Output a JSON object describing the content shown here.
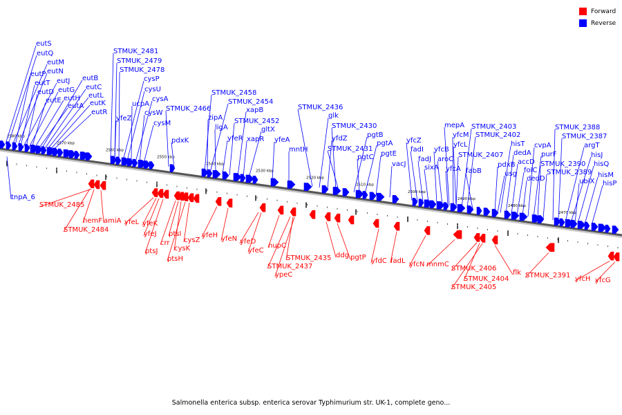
{
  "legend": {
    "forward_label": "Forward",
    "reverse_label": "Reverse",
    "forward_color": "#ff0000",
    "reverse_color": "#0000ff"
  },
  "caption": "Salmonella enterica subsp. enterica serovar Typhimurium str. UK-1, complete geno...",
  "ruler_labels": [
    "2580 kbp",
    "2570 kbp",
    "2560 kbp",
    "2550 kbp",
    "2540 kbp",
    "2530 kbp",
    "2520 kbp",
    "2510 kbp",
    "2500 kbp",
    "2490 kbp",
    "2480 kbp",
    "2470 kbp"
  ],
  "reverse_labels": [
    "eutS",
    "eutQ",
    "eutM",
    "eutP",
    "eutN",
    "eutT",
    "eutJ",
    "eutD",
    "eutG",
    "eutE",
    "eutH",
    "eutA",
    "eutB",
    "eutC",
    "eutL",
    "eutK",
    "eutR",
    "STMUK_2481",
    "STMUK_2479",
    "STMUK_2478",
    "cysP",
    "cysU",
    "ucpA",
    "cysA",
    "cysW",
    "yfeZ",
    "cysM",
    "STMUK_2466",
    "pdxK",
    "STMUK_2458",
    "STMUK_2454",
    "zipA",
    "xapB",
    "ligA",
    "STMUK_2452",
    "yfeR",
    "gltX",
    "xapR",
    "yfeA",
    "mntH",
    "STMUK_2436",
    "glk",
    "STMUK_2430",
    "yfdZ",
    "pgtB",
    "pgtA",
    "STMUK_2431",
    "pgtC",
    "pgtE",
    "vacJ",
    "yfcZ",
    "fadI",
    "fadJ",
    "sixA",
    "mepA",
    "yfcM",
    "yfcL",
    "yfcB",
    "aroC",
    "yfcA",
    "STMUK_2403",
    "STMUK_2402",
    "STMUK_2407",
    "fabB",
    "hisT",
    "dedA",
    "pdxB",
    "accD",
    "usg",
    "folC",
    "dedD",
    "cvpA",
    "purF",
    "STMUK_2390",
    "STMUK_2389",
    "STMUK_2388",
    "STMUK_2387",
    "argT",
    "hisJ",
    "hisQ",
    "ubiX",
    "hisM",
    "hisP",
    "tnpA_6"
  ],
  "forward_labels": [
    "STMUK_2485",
    "hemF",
    "amiA",
    "STMUK_2484",
    "yfeL",
    "yfeK",
    "yfeJ",
    "ptsJ",
    "crr",
    "ptsI",
    "cysK",
    "ptsH",
    "cysZ",
    "yfeH",
    "yfeN",
    "yfeD",
    "yfeC",
    "nupC",
    "STMUK_2435",
    "STMUK_2437",
    "ypeC",
    "ddg",
    "pgtP",
    "yfdC",
    "fadL",
    "yfcN",
    "mnmC",
    "STMUK_2406",
    "STMUK_2404",
    "STMUK_2405",
    "flk",
    "STMUK_2391",
    "yfcH",
    "yfcG"
  ]
}
